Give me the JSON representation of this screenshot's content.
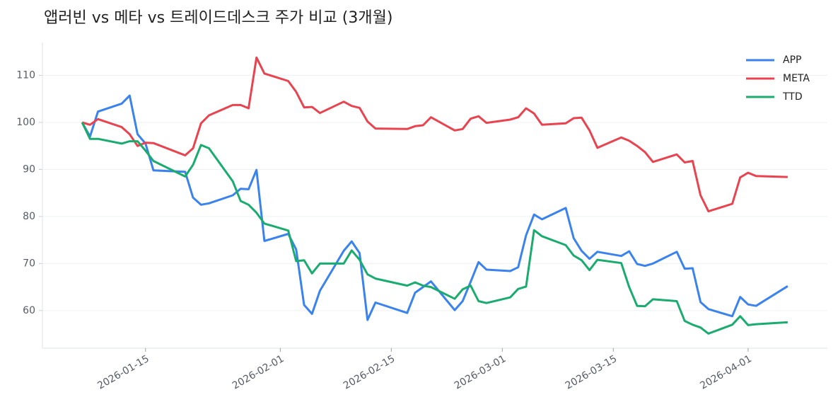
{
  "chart_data": {
    "type": "line",
    "title": "앱러빈 vs 메타 vs 트레이드데스크 주가 비교 (3개월)",
    "x": [
      "2026-01-07",
      "2026-01-08",
      "2026-01-09",
      "2026-01-12",
      "2026-01-13",
      "2026-01-14",
      "2026-01-15",
      "2026-01-16",
      "2026-01-20",
      "2026-01-21",
      "2026-01-22",
      "2026-01-23",
      "2026-01-26",
      "2026-01-27",
      "2026-01-28",
      "2026-01-29",
      "2026-01-30",
      "2026-02-02",
      "2026-02-03",
      "2026-02-04",
      "2026-02-05",
      "2026-02-06",
      "2026-02-09",
      "2026-02-10",
      "2026-02-11",
      "2026-02-12",
      "2026-02-13",
      "2026-02-17",
      "2026-02-18",
      "2026-02-19",
      "2026-02-20",
      "2026-02-23",
      "2026-02-24",
      "2026-02-25",
      "2026-02-26",
      "2026-02-27",
      "2026-03-02",
      "2026-03-03",
      "2026-03-04",
      "2026-03-05",
      "2026-03-06",
      "2026-03-09",
      "2026-03-10",
      "2026-03-11",
      "2026-03-12",
      "2026-03-13",
      "2026-03-16",
      "2026-03-17",
      "2026-03-18",
      "2026-03-19",
      "2026-03-20",
      "2026-03-23",
      "2026-03-24",
      "2026-03-25",
      "2026-03-26",
      "2026-03-27",
      "2026-03-30",
      "2026-03-31",
      "2026-04-01",
      "2026-04-02",
      "2026-04-06"
    ],
    "series": [
      {
        "name": "APP",
        "color": "#3a82ee",
        "values": [
          100,
          97,
          102.3,
          104,
          105.7,
          97.5,
          95.5,
          89.8,
          89.5,
          84,
          82.5,
          82.8,
          84.5,
          85.9,
          85.8,
          89.9,
          74.8,
          76.3,
          73,
          61.2,
          59.3,
          64.2,
          72.7,
          74.7,
          72.2,
          58,
          61.7,
          59.5,
          63.8,
          65,
          66.2,
          60.1,
          62,
          66.1,
          70.3,
          68.7,
          68.4,
          69.2,
          76,
          80.4,
          79.4,
          81.8,
          75.4,
          72.7,
          71,
          72.5,
          71.6,
          72.6,
          69.9,
          69.5,
          70,
          72.5,
          68.9,
          69,
          61.8,
          60.3,
          58.8,
          62.9,
          61.3,
          61,
          65.2
        ]
      },
      {
        "name": "META",
        "color": "#e8434f",
        "values": [
          100,
          99.5,
          100.7,
          99,
          97.5,
          95,
          95.7,
          95.6,
          93,
          94.5,
          99.8,
          101.5,
          103.7,
          103.7,
          103,
          113.8,
          110.4,
          108.8,
          106.5,
          103.2,
          103.3,
          102,
          104.4,
          103.5,
          103.1,
          100.2,
          98.7,
          98.6,
          99.2,
          99.4,
          101.1,
          98.3,
          98.6,
          100.8,
          101.3,
          99.9,
          100.6,
          101.1,
          103,
          101.9,
          99.5,
          99.8,
          100.9,
          101,
          98.3,
          94.6,
          96.8,
          96.1,
          95,
          93.7,
          91.6,
          93.2,
          91.5,
          91.8,
          84.5,
          81.1,
          82.7,
          88.3,
          89.3,
          88.6,
          88.4
        ]
      },
      {
        "name": "TTD",
        "color": "#1aab6e",
        "values": [
          100,
          96.5,
          96.5,
          95.5,
          96,
          96,
          94,
          91.8,
          88.5,
          91,
          95.2,
          94.5,
          87.5,
          83.3,
          82.5,
          80.8,
          78.5,
          77,
          70.5,
          70.7,
          67.9,
          70,
          70,
          72.8,
          70.8,
          67.7,
          66.8,
          65.3,
          66,
          65.3,
          65,
          62.5,
          64.5,
          65.3,
          62,
          61.6,
          62.8,
          64.6,
          65.1,
          77.1,
          75.8,
          73.9,
          71.7,
          70.7,
          68.6,
          70.8,
          70.1,
          65,
          61,
          60.9,
          62.4,
          62,
          57.8,
          57,
          56.4,
          55.1,
          57,
          58.8,
          56.9,
          57.1,
          57.5
        ]
      }
    ],
    "xlim": [
      "2026-01-02",
      "2026-04-11"
    ],
    "xticks": [
      "2026-01-15",
      "2026-02-01",
      "2026-02-15",
      "2026-03-01",
      "2026-03-15",
      "2026-04-01"
    ],
    "ylim": [
      52,
      117
    ],
    "yticks": [
      60,
      70,
      80,
      90,
      100,
      110
    ],
    "grid": true,
    "legend": "upper right"
  }
}
